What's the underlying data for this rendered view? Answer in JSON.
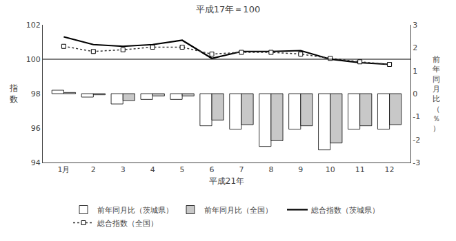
{
  "chart_data": {
    "type": "bar",
    "title": "平成17年＝100",
    "x_label": "平成21年",
    "y_label": "指\n数",
    "y2_label": "前\n年\n同\n月\n比\n（\n％\n）",
    "categories": [
      "1月",
      "2",
      "3",
      "4",
      "5",
      "6",
      "7",
      "8",
      "9",
      "10",
      "11",
      "12"
    ],
    "series": [
      {
        "name": "前年同月比（茨城県）",
        "type": "bar",
        "axis": "y2",
        "color": "#ffffff",
        "values": [
          0.15,
          -0.15,
          -0.45,
          -0.25,
          -0.25,
          -1.4,
          -1.55,
          -2.3,
          -1.55,
          -2.45,
          -1.55,
          -1.55
        ]
      },
      {
        "name": "前年同月比（全国）",
        "type": "bar",
        "axis": "y2",
        "color": "#c8c8c8",
        "values": [
          0.05,
          -0.05,
          -0.3,
          -0.1,
          -0.1,
          -1.15,
          -1.35,
          -2.05,
          -1.4,
          -2.15,
          -1.4,
          -1.35
        ]
      },
      {
        "name": "総合指数（茨城県）",
        "type": "line",
        "color": "#000000",
        "line_style": "solid",
        "values": [
          101.3,
          100.85,
          100.75,
          100.85,
          101.1,
          100.05,
          100.45,
          100.45,
          100.5,
          100.0,
          99.8,
          99.7
        ]
      },
      {
        "name": "総合指数（全国）",
        "type": "line",
        "color": "#333333",
        "line_style": "dotted",
        "marker": "square",
        "values": [
          100.75,
          100.45,
          100.55,
          100.7,
          100.7,
          100.3,
          100.4,
          100.4,
          100.3,
          100.05,
          99.85,
          99.7
        ]
      }
    ],
    "ylim": [
      94,
      102
    ],
    "yticks": [
      94,
      96,
      98,
      100,
      102
    ],
    "y2lim": [
      -3,
      3
    ],
    "y2ticks": [
      -3,
      -2,
      -1,
      0,
      1,
      2,
      3
    ],
    "reference_line": 100,
    "grid": false,
    "legend": "bottom"
  }
}
